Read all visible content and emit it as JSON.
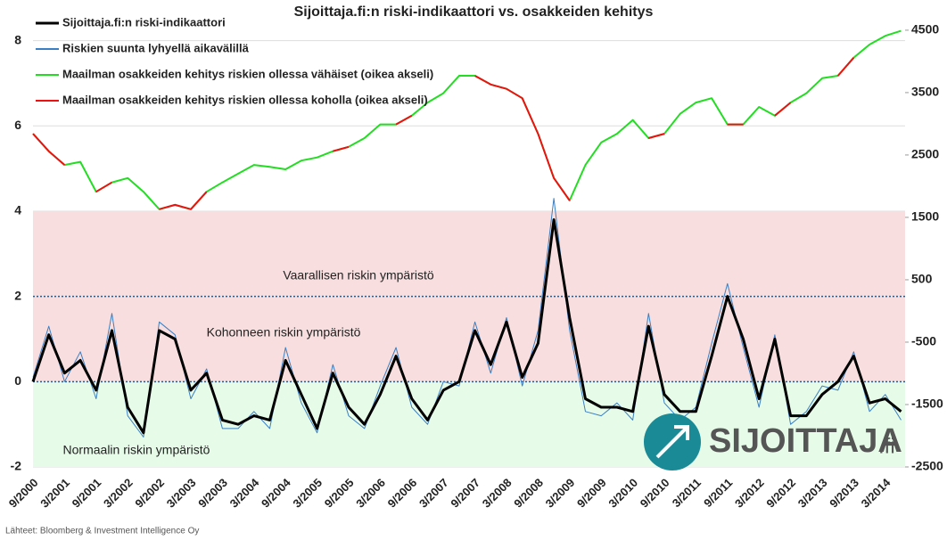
{
  "chart_data": {
    "type": "line",
    "title": "Sijoittaja.fi:n riski-indikaattori vs. osakkeiden kehitys",
    "categories": [
      "9/2000",
      null,
      "3/2001",
      null,
      "9/2001",
      null,
      "3/2002",
      null,
      "9/2002",
      null,
      "3/2003",
      null,
      "9/2003",
      null,
      "3/2004",
      null,
      "9/2004",
      null,
      "3/2005",
      null,
      "9/2005",
      null,
      "3/2006",
      null,
      "9/2006",
      null,
      "3/2007",
      null,
      "9/2007",
      null,
      "3/2008",
      null,
      "9/2008",
      null,
      "3/2009",
      null,
      "9/2009",
      null,
      "3/2010",
      null,
      "9/2010",
      null,
      "3/2011",
      null,
      "9/2011",
      null,
      "3/2012",
      null,
      "9/2012",
      null,
      "3/2013",
      null,
      "9/2013",
      null,
      "3/2014",
      null
    ],
    "series": [
      {
        "name": "Maailman osakkeiden kehitys riskien ollessa vähäiset (oikea akseli)",
        "color": "#22dd22",
        "axis": "y2",
        "width": 2,
        "values": [
          2840,
          2560,
          2340,
          2390,
          1910,
          2060,
          2130,
          1910,
          1630,
          1700,
          1630,
          1910,
          2060,
          2200,
          2340,
          2310,
          2270,
          2410,
          2460,
          2560,
          2630,
          2770,
          2990,
          2990,
          3130,
          3340,
          3490,
          3770,
          3770,
          3630,
          3560,
          3410,
          2840,
          2130,
          1770,
          2340,
          2700,
          2840,
          3060,
          2770,
          2840,
          3160,
          3340,
          3410,
          2990,
          2990,
          3270,
          3130,
          3340,
          3490,
          3730,
          3770,
          4060,
          4270,
          4410,
          4490
        ]
      },
      {
        "name": "Maailman osakkeiden kehitys riskien ollessa koholla (oikea akseli)",
        "color": "#ee1111",
        "axis": "y2",
        "width": 2,
        "values": [
          2840,
          2560,
          2340,
          null,
          1910,
          2060,
          null,
          null,
          1630,
          1700,
          1630,
          1910,
          null,
          null,
          null,
          null,
          null,
          null,
          null,
          2560,
          2630,
          null,
          null,
          2990,
          3130,
          null,
          null,
          null,
          3770,
          3630,
          3560,
          3410,
          2840,
          2130,
          1770,
          null,
          null,
          null,
          null,
          2770,
          2840,
          null,
          null,
          null,
          2990,
          2990,
          null,
          3130,
          3340,
          null,
          null,
          3770,
          4060,
          null,
          null,
          null
        ]
      },
      {
        "name": "Riskien suunta lyhyellä aikavälillä",
        "color": "#3a7fc4",
        "axis": "y",
        "width": 1,
        "values": [
          0.1,
          1.3,
          0.0,
          0.7,
          -0.4,
          1.6,
          -0.8,
          -1.3,
          1.4,
          1.1,
          -0.4,
          0.3,
          -1.1,
          -1.1,
          -0.7,
          -1.1,
          0.8,
          -0.5,
          -1.2,
          0.4,
          -0.8,
          -1.1,
          -0.1,
          0.8,
          -0.6,
          -1.0,
          0.0,
          -0.1,
          1.4,
          0.2,
          1.5,
          -0.1,
          1.2,
          4.3,
          1.2,
          -0.7,
          -0.8,
          -0.5,
          -0.9,
          1.6,
          -0.5,
          -0.9,
          -0.6,
          0.9,
          2.3,
          0.8,
          -0.6,
          1.1,
          -1.0,
          -0.7,
          -0.1,
          -0.2,
          0.7,
          -0.7,
          -0.3,
          -0.9
        ]
      },
      {
        "name": "Sijoittaja.fi:n riski-indikaattori",
        "color": "#000000",
        "axis": "y",
        "width": 3,
        "values": [
          0.0,
          1.1,
          0.2,
          0.5,
          -0.2,
          1.2,
          -0.6,
          -1.2,
          1.2,
          1.0,
          -0.2,
          0.2,
          -0.9,
          -1.0,
          -0.8,
          -0.9,
          0.5,
          -0.3,
          -1.1,
          0.2,
          -0.6,
          -1.0,
          -0.3,
          0.6,
          -0.4,
          -0.9,
          -0.2,
          0.0,
          1.2,
          0.4,
          1.4,
          0.1,
          0.9,
          3.8,
          1.5,
          -0.4,
          -0.6,
          -0.6,
          -0.7,
          1.3,
          -0.3,
          -0.7,
          -0.7,
          0.6,
          2.0,
          1.0,
          -0.4,
          1.0,
          -0.8,
          -0.8,
          -0.3,
          0.0,
          0.6,
          -0.5,
          -0.4,
          -0.7
        ]
      }
    ],
    "legend_order": [
      3,
      2,
      0,
      1
    ],
    "ylim": [
      -2,
      8.2
    ],
    "yticks": [
      -2,
      0,
      2,
      4,
      6,
      8
    ],
    "y2lim": [
      -2500,
      4470
    ],
    "y2ticks": [
      -2500,
      -1500,
      -500,
      500,
      1500,
      2500,
      3500,
      4500
    ],
    "grid": true,
    "bands": [
      {
        "from": -2,
        "to": 0,
        "color": "#e6fbe8",
        "label": "Normaalin riskin ympäristö"
      },
      {
        "from": 0,
        "to": 4,
        "color": "#f8dede"
      }
    ],
    "reference_lines": [
      0,
      2
    ],
    "annotations": [
      "Vaarallisen riskin ympäristö",
      "Kohonneen riskin ympäristö"
    ],
    "source": "Lähteet: Bloomberg & Investment Intelligence Oy",
    "logo_text": "SIJOITTAJA",
    "logo_suffix": ".fi"
  }
}
